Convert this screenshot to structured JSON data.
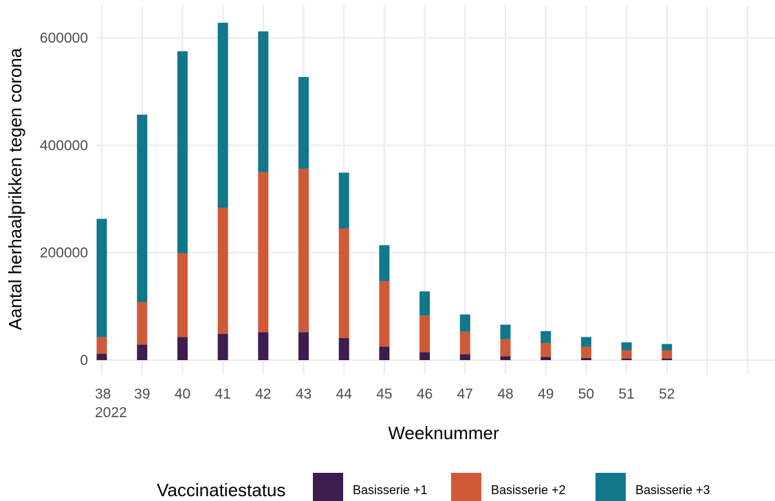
{
  "chart_data": {
    "type": "bar",
    "stacked": true,
    "categories": [
      "38",
      "39",
      "40",
      "41",
      "42",
      "43",
      "44",
      "45",
      "46",
      "47",
      "48",
      "49",
      "50",
      "51",
      "52"
    ],
    "first_category_sublabel": "2022",
    "series": [
      {
        "name": "Basisserie +1",
        "color": "#3d1c4f",
        "values": [
          12000,
          29000,
          43000,
          49000,
          52000,
          52000,
          41000,
          25000,
          15000,
          11000,
          7000,
          6000,
          4000,
          3000,
          3000
        ]
      },
      {
        "name": "Basisserie +2",
        "color": "#d05a38",
        "values": [
          31000,
          79000,
          156000,
          235000,
          298000,
          304000,
          204000,
          122000,
          68000,
          42000,
          32000,
          26000,
          21000,
          15000,
          15000
        ]
      },
      {
        "name": "Basisserie +3",
        "color": "#10788a",
        "values": [
          220000,
          349000,
          376000,
          344000,
          262000,
          171000,
          104000,
          67000,
          45000,
          32000,
          27000,
          22000,
          18000,
          15000,
          12000
        ]
      }
    ],
    "xlabel": "Weeknummer",
    "ylabel": "Aantal herhaalprikken tegen corona",
    "yticks": [
      0,
      200000,
      400000,
      600000
    ],
    "ylim": [
      0,
      630000
    ],
    "xlim": [
      37.8,
      54.6
    ],
    "legend": {
      "title": "Vaccinatiestatus",
      "position": "bottom"
    },
    "grid": true
  }
}
